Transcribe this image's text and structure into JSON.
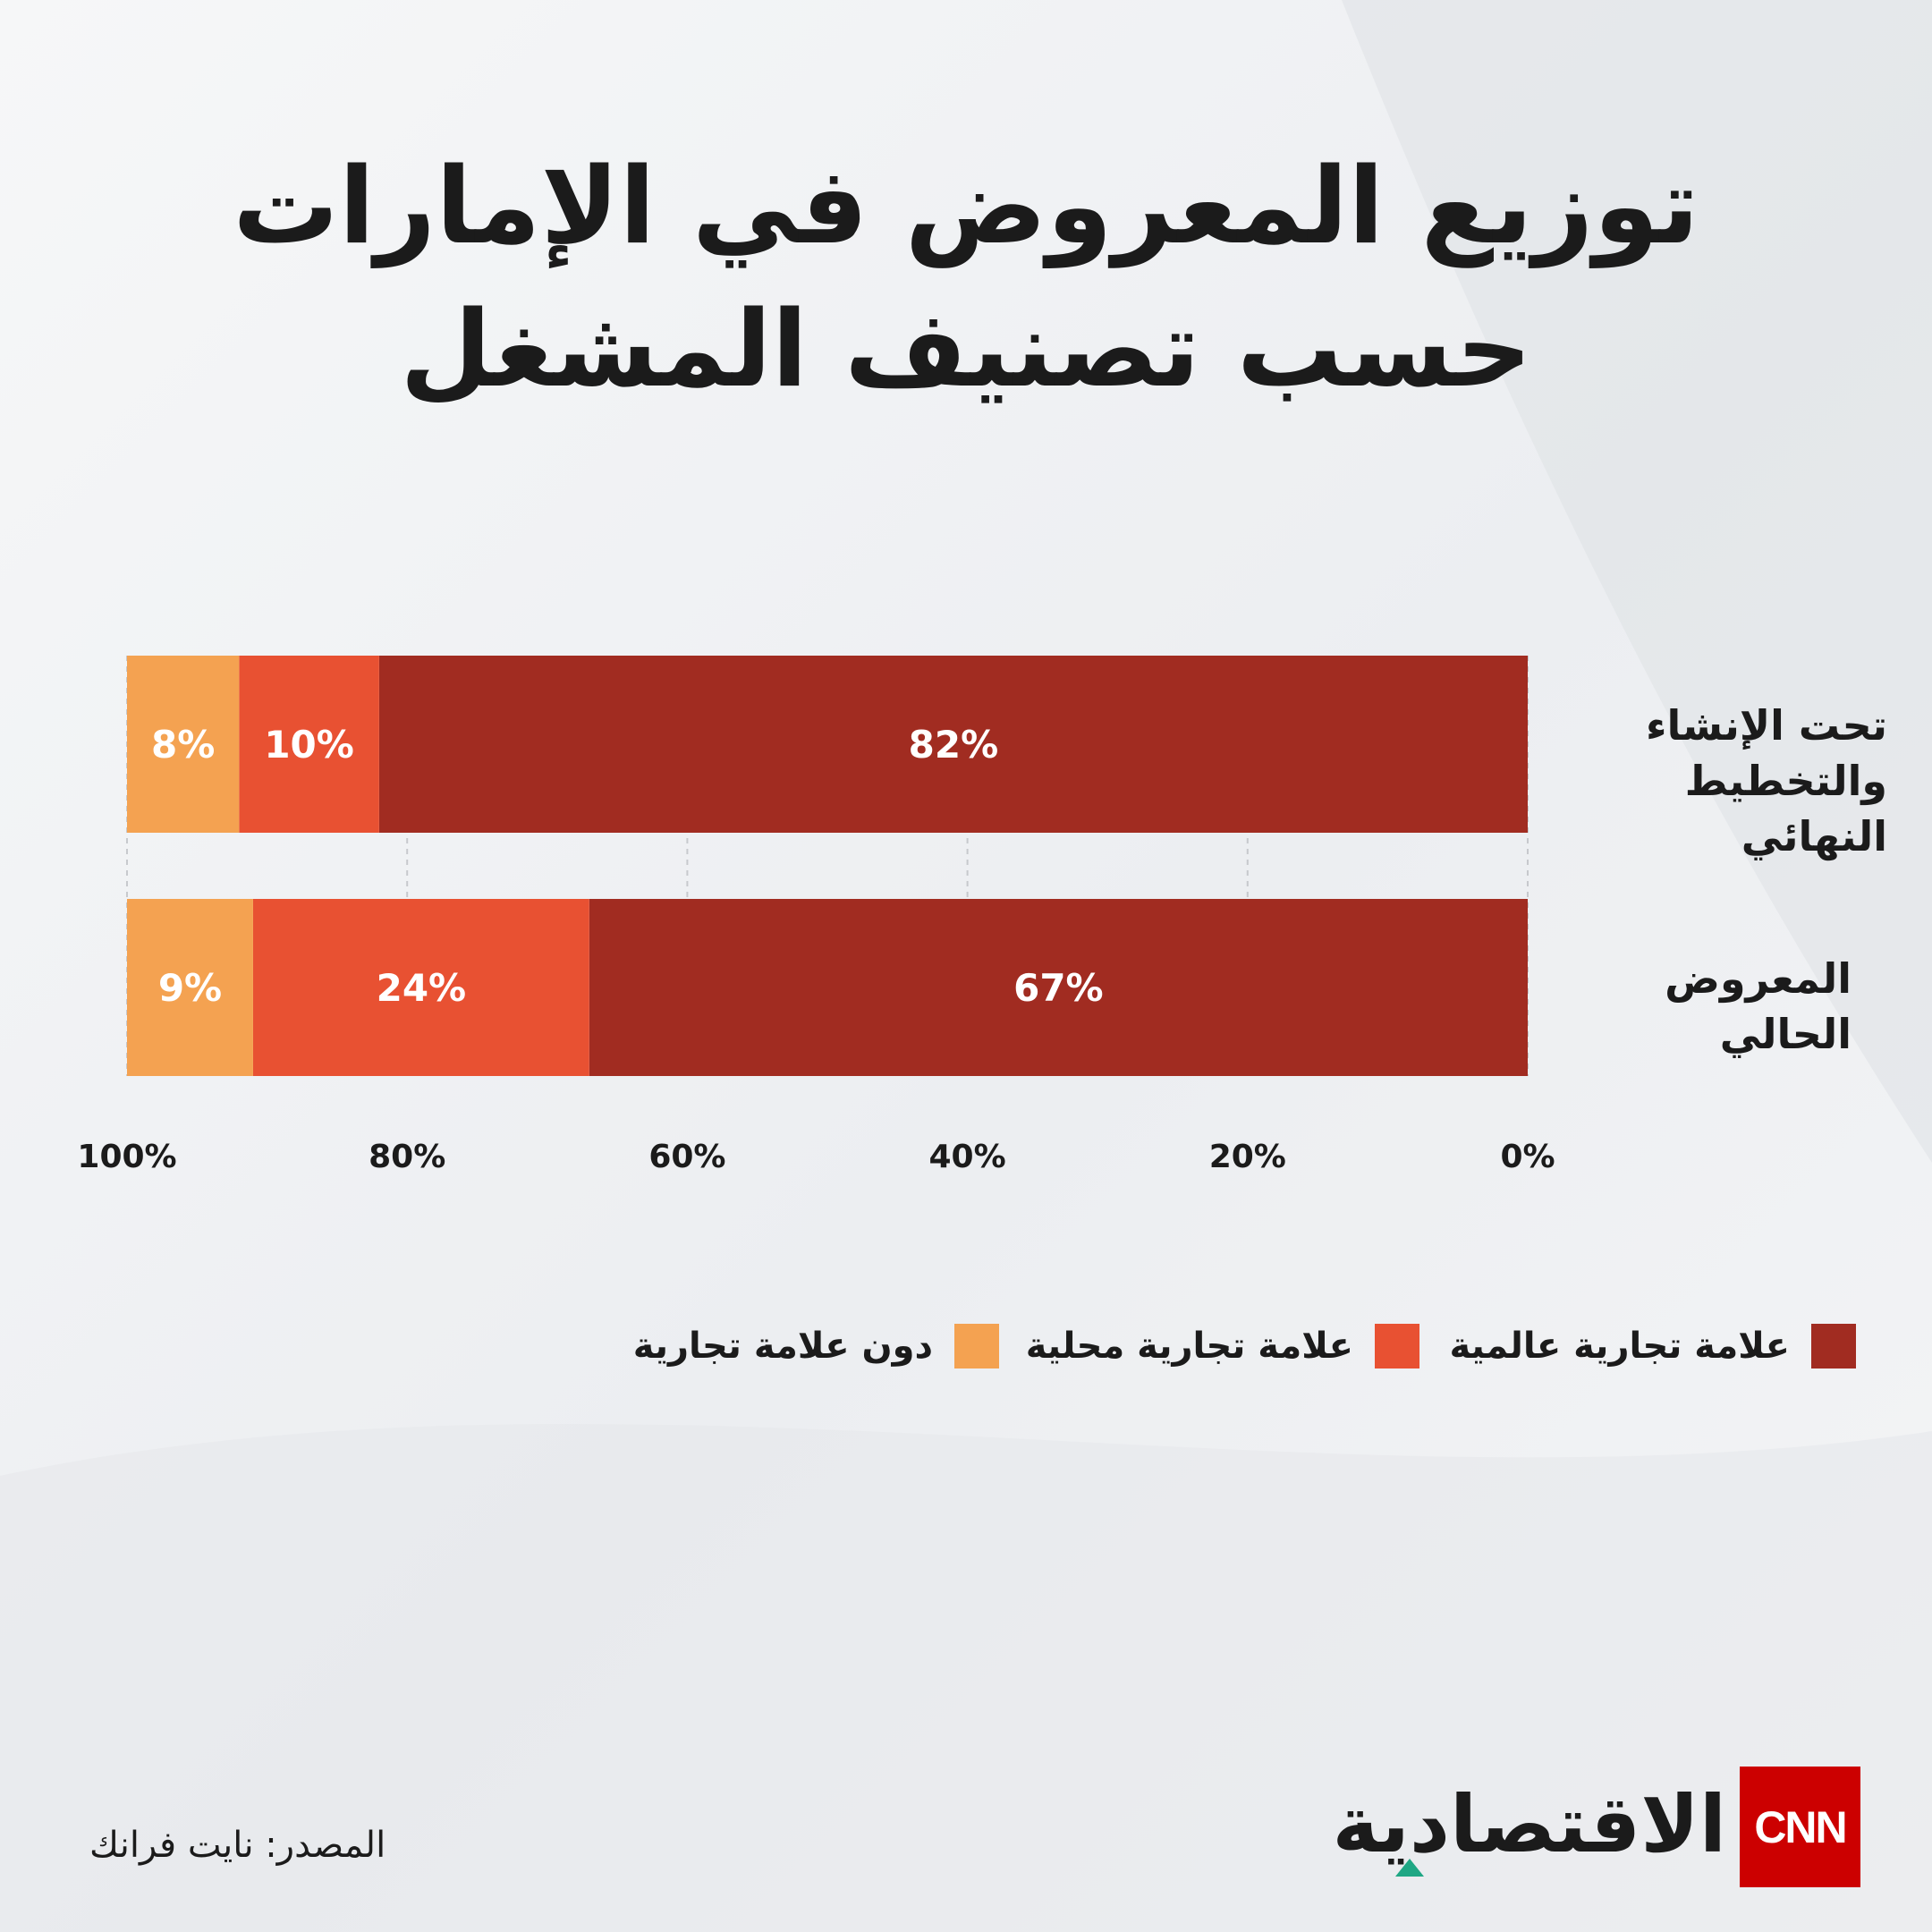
{
  "title": "توزيع المعروض في الإمارات حسب تصنيف المشغل",
  "colors": {
    "global_brand": "#a12c21",
    "local_brand": "#e85132",
    "no_brand": "#f4a251",
    "grid": "#c7c9cd",
    "tick_text": "#1b1b1b"
  },
  "chart_data": {
    "type": "bar",
    "orientation": "horizontal",
    "stacked": true,
    "axis_direction": "right-to-left",
    "categories": [
      "تحت الإنشاء والتخطيط النهائي",
      "المعروض الحالي"
    ],
    "series": [
      {
        "name": "علامة تجارية عالمية",
        "values": [
          82,
          67
        ],
        "labels": [
          "82%",
          "67%"
        ]
      },
      {
        "name": "علامة تجارية محلية",
        "values": [
          10,
          24
        ],
        "labels": [
          "10%",
          "24%"
        ]
      },
      {
        "name": "دون علامة تجارية",
        "values": [
          8,
          9
        ],
        "labels": [
          "8%",
          "9%"
        ]
      }
    ],
    "xlim": [
      0,
      100
    ],
    "x_ticks": [
      0,
      20,
      40,
      60,
      80,
      100
    ],
    "x_tick_labels": [
      "0%",
      "20%",
      "40%",
      "60%",
      "80%",
      "100%"
    ],
    "grid": true,
    "legend": "bottom"
  },
  "source": "المصدر: نايت فرانك",
  "brand": {
    "logo_text": "CNN",
    "name": "الاقتصادية"
  }
}
